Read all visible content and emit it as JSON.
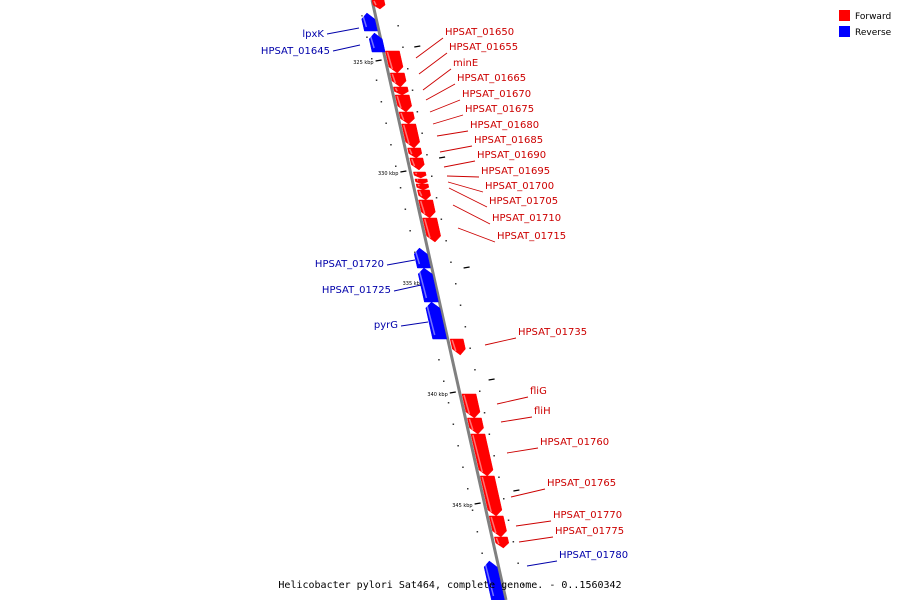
{
  "caption": "Helicobacter pylori Sat464, complete genome. - 0..1560342",
  "legend": [
    {
      "label": "Forward",
      "color": "#ff0000"
    },
    {
      "label": "Reverse",
      "color": "#0000ff"
    }
  ],
  "colors": {
    "forward": "#ff0000",
    "forward_label": "#cc0000",
    "reverse": "#0000ff",
    "reverse_label": "#0000aa",
    "backbone": "#808080"
  },
  "tick_labels": [
    "325 kbp",
    "330 kbp",
    "335 kbp",
    "340 kbp",
    "345 kbp"
  ],
  "genes": [
    {
      "name": "lpxK",
      "strand": "reverse"
    },
    {
      "name": "HPSAT_01645",
      "strand": "reverse"
    },
    {
      "name": "HPSAT_01650",
      "strand": "forward"
    },
    {
      "name": "HPSAT_01655",
      "strand": "forward"
    },
    {
      "name": "minE",
      "strand": "forward"
    },
    {
      "name": "HPSAT_01665",
      "strand": "forward"
    },
    {
      "name": "HPSAT_01670",
      "strand": "forward"
    },
    {
      "name": "HPSAT_01675",
      "strand": "forward"
    },
    {
      "name": "HPSAT_01680",
      "strand": "forward"
    },
    {
      "name": "HPSAT_01685",
      "strand": "forward"
    },
    {
      "name": "HPSAT_01690",
      "strand": "forward"
    },
    {
      "name": "HPSAT_01695",
      "strand": "forward"
    },
    {
      "name": "HPSAT_01700",
      "strand": "forward"
    },
    {
      "name": "HPSAT_01705",
      "strand": "forward"
    },
    {
      "name": "HPSAT_01710",
      "strand": "forward"
    },
    {
      "name": "HPSAT_01715",
      "strand": "forward"
    },
    {
      "name": "HPSAT_01720",
      "strand": "reverse"
    },
    {
      "name": "HPSAT_01725",
      "strand": "reverse"
    },
    {
      "name": "pyrG",
      "strand": "reverse"
    },
    {
      "name": "HPSAT_01735",
      "strand": "forward"
    },
    {
      "name": "fliG",
      "strand": "forward"
    },
    {
      "name": "fliH",
      "strand": "forward"
    },
    {
      "name": "HPSAT_01760",
      "strand": "forward"
    },
    {
      "name": "HPSAT_01765",
      "strand": "forward"
    },
    {
      "name": "HPSAT_01770",
      "strand": "forward"
    },
    {
      "name": "HPSAT_01775",
      "strand": "forward"
    },
    {
      "name": "HPSAT_01780",
      "strand": "reverse"
    }
  ]
}
